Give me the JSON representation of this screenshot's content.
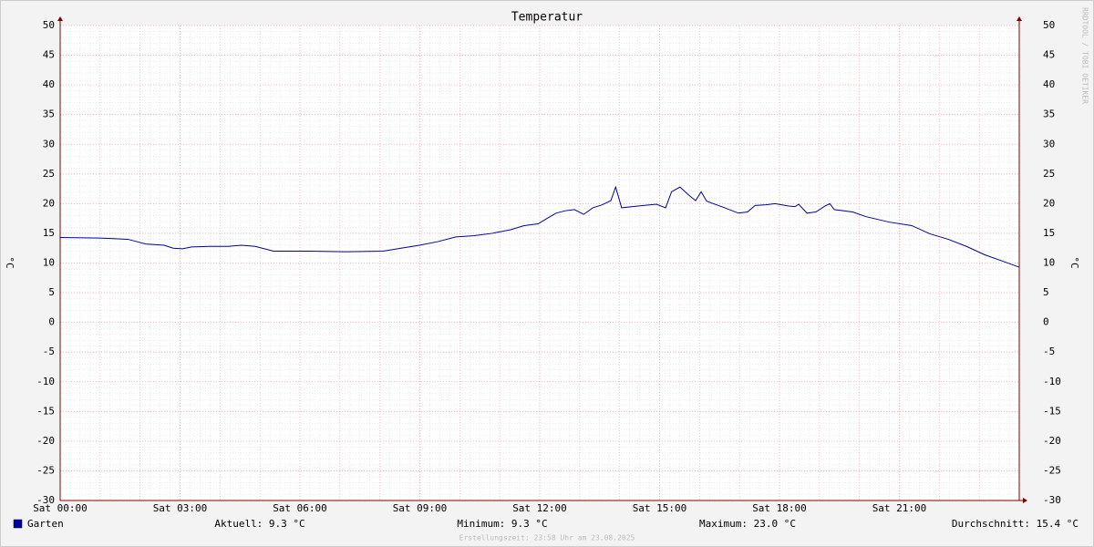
{
  "chart_data": {
    "type": "line",
    "title": "Temperatur",
    "y_label": "°C",
    "x": [
      0,
      1.0,
      1.69,
      1.92,
      2.14,
      2.6,
      2.83,
      3.06,
      3.29,
      3.74,
      4.2,
      4.54,
      4.88,
      5.34,
      6.25,
      7.12,
      8.08,
      8.53,
      8.99,
      9.45,
      9.9,
      10.36,
      10.81,
      11.27,
      11.61,
      11.96,
      12.18,
      12.41,
      12.64,
      12.87,
      13.1,
      13.33,
      13.56,
      13.78,
      13.9,
      14.05,
      14.46,
      14.92,
      15.15,
      15.3,
      15.51,
      15.72,
      15.9,
      16.04,
      16.18,
      16.63,
      16.97,
      17.2,
      17.39,
      17.66,
      17.89,
      18.23,
      18.39,
      18.48,
      18.69,
      18.91,
      19.14,
      19.26,
      19.37,
      19.83,
      20.17,
      20.74,
      21.31,
      21.77,
      22.22,
      22.68,
      23.13,
      23.59,
      24
    ],
    "series": [
      {
        "name": "Garten",
        "color": "#0000a0",
        "values": [
          14.3,
          14.2,
          14.0,
          13.6,
          13.2,
          13.0,
          12.5,
          12.4,
          12.7,
          12.8,
          12.8,
          13.0,
          12.8,
          12.0,
          12.0,
          11.9,
          12.0,
          12.5,
          13.0,
          13.6,
          14.4,
          14.6,
          15.0,
          15.6,
          16.3,
          16.6,
          17.5,
          18.4,
          18.8,
          19.0,
          18.2,
          19.3,
          19.8,
          20.5,
          22.8,
          19.3,
          19.6,
          19.9,
          19.3,
          22.0,
          22.8,
          21.5,
          20.5,
          22.0,
          20.4,
          19.3,
          18.4,
          18.6,
          19.7,
          19.8,
          20.0,
          19.6,
          19.5,
          19.9,
          18.4,
          18.6,
          19.6,
          20.0,
          19.0,
          18.6,
          17.8,
          16.9,
          16.3,
          14.9,
          14.0,
          12.8,
          11.4,
          10.3,
          9.3
        ]
      }
    ],
    "xlim": [
      0,
      24
    ],
    "xticks": [
      {
        "value": 0,
        "label": "Sat 00:00"
      },
      {
        "value": 3,
        "label": "Sat 03:00"
      },
      {
        "value": 6,
        "label": "Sat 06:00"
      },
      {
        "value": 9,
        "label": "Sat 09:00"
      },
      {
        "value": 12,
        "label": "Sat 12:00"
      },
      {
        "value": 15,
        "label": "Sat 15:00"
      },
      {
        "value": 18,
        "label": "Sat 18:00"
      },
      {
        "value": 21,
        "label": "Sat 21:00"
      }
    ],
    "ylim": [
      -30,
      50
    ],
    "yticks": [
      -30,
      -25,
      -20,
      -15,
      -10,
      -5,
      0,
      5,
      10,
      15,
      20,
      25,
      30,
      35,
      40,
      45,
      50
    ],
    "grid": true,
    "stats": [
      "Aktuell: 9.3 °C",
      "Minimum: 9.3 °C",
      "Maximum: 23.0 °C",
      "Durchschnitt: 15.4 °C"
    ],
    "footer": "Erstellungszeit: 23:58 Uhr am 23.08.2025",
    "watermark": "RRDTOOL / TOBI OETIKER"
  }
}
